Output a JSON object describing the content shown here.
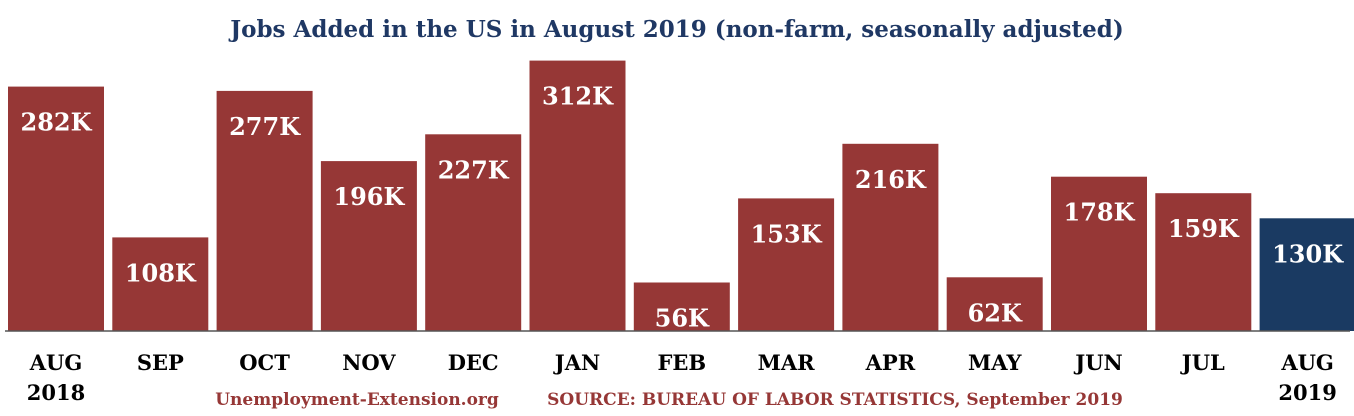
{
  "colors": {
    "bar": "#963736",
    "highlight": "#1a3a62",
    "title": "#1f3864",
    "footer": "#963736",
    "axis": "#555555"
  },
  "footer": {
    "site": "Unemployment-Extension.org",
    "source": "SOURCE: BUREAU OF LABOR STATISTICS, September 2019"
  },
  "chart_data": {
    "type": "bar",
    "title": "Jobs Added in the US in August 2019 (non-farm, seasonally adjusted)",
    "xlabel": "",
    "ylabel": "",
    "ylim": [
      0,
      330
    ],
    "grid": false,
    "legend": "none",
    "categories": [
      [
        "AUG",
        "2018"
      ],
      [
        "SEP"
      ],
      [
        "OCT"
      ],
      [
        "NOV"
      ],
      [
        "DEC"
      ],
      [
        "JAN"
      ],
      [
        "FEB"
      ],
      [
        "MAR"
      ],
      [
        "APR"
      ],
      [
        "MAY"
      ],
      [
        "JUN"
      ],
      [
        "JUL"
      ],
      [
        "AUG",
        "2019"
      ]
    ],
    "values": [
      282,
      108,
      277,
      196,
      227,
      312,
      56,
      153,
      216,
      62,
      178,
      159,
      130
    ],
    "data_labels": [
      "282K",
      "108K",
      "277K",
      "196K",
      "227K",
      "312K",
      "56K",
      "153K",
      "216K",
      "62K",
      "178K",
      "159K",
      "130K"
    ],
    "highlight_index": 12
  }
}
